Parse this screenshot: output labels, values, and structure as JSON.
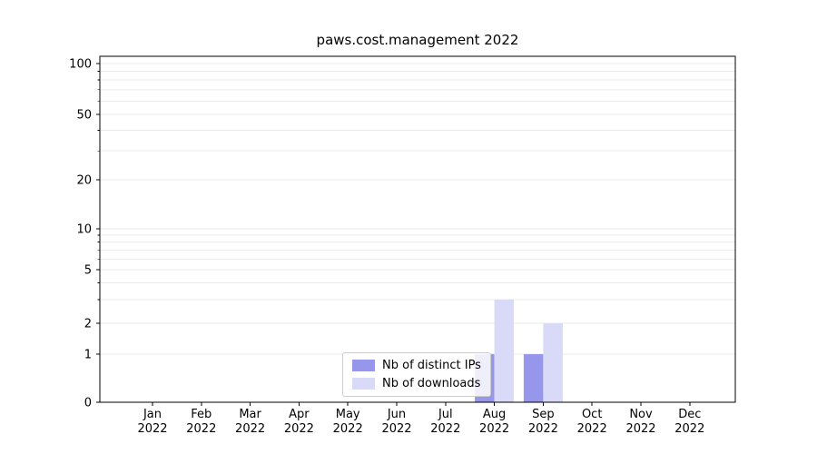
{
  "chart_data": {
    "type": "bar",
    "title": "paws.cost.management 2022",
    "x_categories": [
      "Jan",
      "Feb",
      "Mar",
      "Apr",
      "May",
      "Jun",
      "Jul",
      "Aug",
      "Sep",
      "Oct",
      "Nov",
      "Dec"
    ],
    "x_year_label": "2022",
    "series": [
      {
        "name": "Nb of distinct IPs",
        "color": "#9696ea",
        "values": [
          0,
          0,
          0,
          0,
          0,
          0,
          0,
          1,
          1,
          0,
          0,
          0
        ]
      },
      {
        "name": "Nb of downloads",
        "color": "#d9d9f8",
        "values": [
          0,
          0,
          0,
          0,
          0,
          0,
          0,
          3,
          2,
          0,
          0,
          0
        ]
      }
    ],
    "yscale": "symlog",
    "ylim": [
      0,
      115
    ],
    "y_major_ticks": [
      0,
      1,
      2,
      5,
      10,
      20,
      50,
      100
    ],
    "y_gridline_values": [
      1,
      2,
      3,
      4,
      5,
      6,
      7,
      8,
      9,
      10,
      20,
      30,
      40,
      50,
      60,
      70,
      80,
      90,
      100
    ],
    "legend": {
      "position": "lower center"
    },
    "axes": {
      "grid": true,
      "background": "#ffffff",
      "border_color": "#000000",
      "gridline_color": "#e9e9e9",
      "text_color": "#000000"
    }
  }
}
